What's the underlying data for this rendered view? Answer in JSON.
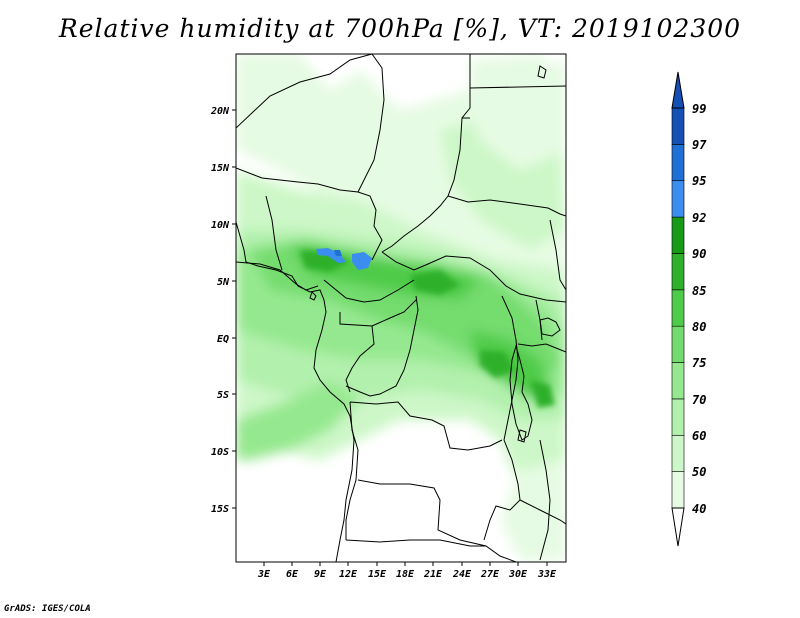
{
  "title": "Relative humidity at 700hPa [%], VT: 2019102300",
  "credit": "GrADS: IGES/COLA",
  "map": {
    "lon_range": [
      0,
      35
    ],
    "lat_range": [
      -20,
      25
    ],
    "lat_ticks": [
      "20N",
      "15N",
      "10N",
      "5N",
      "EQ",
      "5S",
      "10S",
      "15S"
    ],
    "lon_ticks": [
      "3E",
      "6E",
      "9E",
      "12E",
      "15E",
      "18E",
      "21E",
      "24E",
      "27E",
      "30E",
      "33E"
    ],
    "field": "relative humidity",
    "level": "700hPa"
  },
  "colorbar": {
    "labels": [
      "40",
      "50",
      "60",
      "70",
      "75",
      "80",
      "85",
      "90",
      "92",
      "95",
      "97",
      "99"
    ],
    "colors": [
      "#ffffff",
      "#e6fbe3",
      "#cdf7c8",
      "#b2f0ad",
      "#95e88f",
      "#74dc6e",
      "#4fcb4a",
      "#2fb02c",
      "#169a18",
      "#3b8ef0",
      "#1e6fd6",
      "#1550b4"
    ]
  }
}
